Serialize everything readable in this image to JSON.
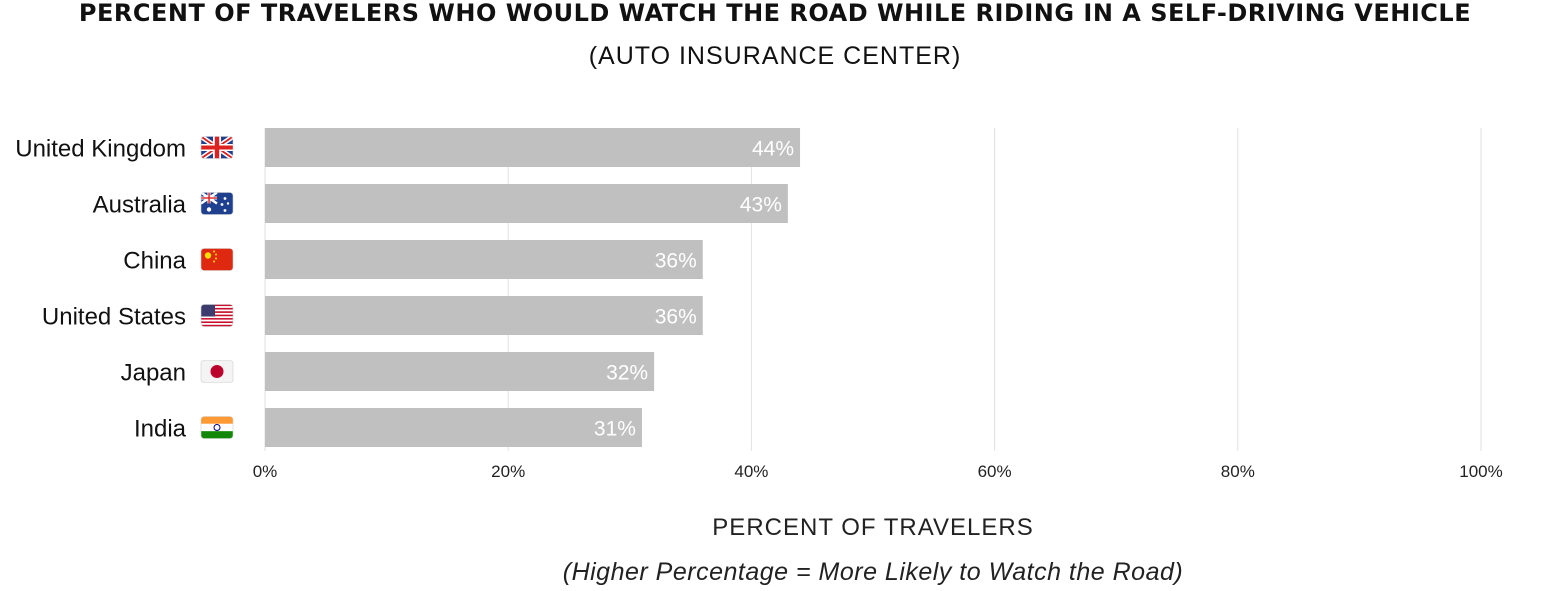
{
  "chart_data": {
    "type": "bar",
    "orientation": "horizontal",
    "title": "PERCENT OF TRAVELERS WHO WOULD WATCH THE ROAD WHILE RIDING IN A SELF-DRIVING VEHICLE",
    "subtitle": "(AUTO INSURANCE CENTER)",
    "xlabel": "PERCENT OF TRAVELERS",
    "note": "(Higher Percentage = More Likely to Watch the Road)",
    "categories": [
      "United Kingdom",
      "Australia",
      "China",
      "United States",
      "Japan",
      "India"
    ],
    "flags": [
      "gb",
      "au",
      "cn",
      "us",
      "jp",
      "in"
    ],
    "values": [
      44,
      43,
      36,
      36,
      32,
      31
    ],
    "data_labels": [
      "44%",
      "43%",
      "36%",
      "36%",
      "32%",
      "31%"
    ],
    "xlim": [
      0,
      100
    ],
    "xticks": [
      0,
      20,
      40,
      60,
      80,
      100
    ],
    "xtick_labels": [
      "0%",
      "20%",
      "40%",
      "60%",
      "80%",
      "100%"
    ],
    "grid": "vertical",
    "bar_color": "#c0c0c0",
    "label_color": "#ffffff"
  }
}
